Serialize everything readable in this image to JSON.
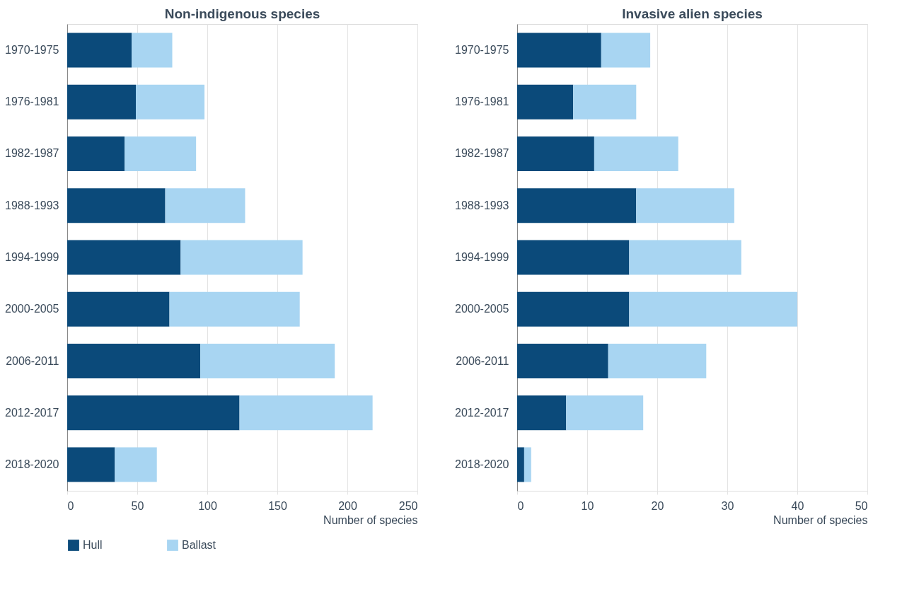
{
  "chart_data": [
    {
      "type": "bar",
      "orientation": "horizontal",
      "stacked": true,
      "title": "Non-indigenous species",
      "xlabel": "Number of species",
      "categories": [
        "1970-1975",
        "1976-1981",
        "1982-1987",
        "1988-1993",
        "1994-1999",
        "2000-2005",
        "2006-2011",
        "2012-2017",
        "2018-2020"
      ],
      "series": [
        {
          "name": "Hull",
          "color": "#0b4a7a",
          "values": [
            46,
            49,
            41,
            70,
            81,
            73,
            95,
            123,
            34
          ]
        },
        {
          "name": "Ballast",
          "color": "#a8d5f2",
          "values": [
            29,
            49,
            51,
            57,
            87,
            93,
            96,
            95,
            30
          ]
        }
      ],
      "xlim": [
        0,
        250
      ],
      "xticks": [
        0,
        50,
        100,
        150,
        200,
        250
      ],
      "grid": "x",
      "legend": "bottom"
    },
    {
      "type": "bar",
      "orientation": "horizontal",
      "stacked": true,
      "title": "Invasive alien species",
      "xlabel": "Number of species",
      "categories": [
        "1970-1975",
        "1976-1981",
        "1982-1987",
        "1988-1993",
        "1994-1999",
        "2000-2005",
        "2006-2011",
        "2012-2017",
        "2018-2020"
      ],
      "series": [
        {
          "name": "Hull",
          "color": "#0b4a7a",
          "values": [
            12,
            8,
            11,
            17,
            16,
            16,
            13,
            7,
            1
          ]
        },
        {
          "name": "Ballast",
          "color": "#a8d5f2",
          "values": [
            7,
            9,
            12,
            14,
            16,
            24,
            14,
            11,
            1
          ]
        }
      ],
      "xlim": [
        0,
        50
      ],
      "xticks": [
        0,
        10,
        20,
        30,
        40,
        50
      ],
      "grid": "x",
      "legend": "bottom"
    }
  ]
}
